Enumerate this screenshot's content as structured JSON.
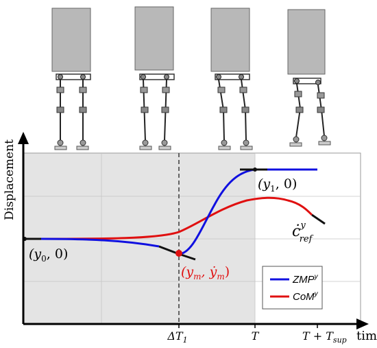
{
  "axes": {
    "ylabel": "Displacement",
    "xlabel": "time",
    "ticks": [
      {
        "id": "dt1",
        "base": "ΔT",
        "sub": "1"
      },
      {
        "id": "T",
        "base": "T",
        "sub": ""
      },
      {
        "id": "Tsup",
        "base": "T + T",
        "sub": "sup"
      }
    ]
  },
  "annotations": {
    "start": {
      "open": "(y",
      "sub": "0",
      "close": ", 0)"
    },
    "end": {
      "open": "(y",
      "sub": "1",
      "close": ", 0)"
    },
    "mid": {
      "open": "(y",
      "sub1": "m",
      "comma": ", ẏ",
      "sub2": "m",
      "close": ")"
    },
    "cref": {
      "base": "ċ",
      "sup": "y",
      "sub": "ref"
    }
  },
  "legend": {
    "items": [
      {
        "base": "ZMP",
        "sup": "y",
        "color": "#1010e0"
      },
      {
        "base": "CoM",
        "sup": "y",
        "color": "#e01010"
      }
    ]
  },
  "colors": {
    "zmp": "#1010e0",
    "com": "#e01010",
    "shade": "#e4e4e4",
    "robot_body": "#b8b8b8"
  }
}
